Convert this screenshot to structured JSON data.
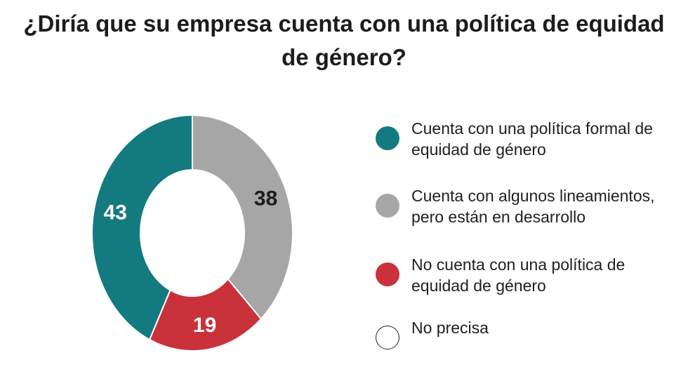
{
  "title": "¿Diría que su empresa cuenta con una política de equidad de género?",
  "chart_data": {
    "type": "pie",
    "variant": "donut",
    "title": "¿Diría que su empresa cuenta con una política de equidad de género?",
    "unit": "%",
    "legend_position": "right",
    "series": [
      {
        "name": "Cuenta con una política formal de equidad de género",
        "value": 43,
        "label": "43",
        "color": "#137a7f",
        "label_color": "#ffffff"
      },
      {
        "name": "Cuenta con algunos lineamientos, pero están en desarrollo",
        "value": 38,
        "label": "38",
        "color": "#a6a6a6",
        "label_color": "#1c1c1c"
      },
      {
        "name": "No cuenta con una política de equidad de género",
        "value": 19,
        "label": "19",
        "color": "#c9323b",
        "label_color": "#ffffff"
      },
      {
        "name": "No precisa",
        "value": 0,
        "label": "",
        "color": "#ffffff",
        "label_color": "#1c1c1c"
      }
    ]
  }
}
